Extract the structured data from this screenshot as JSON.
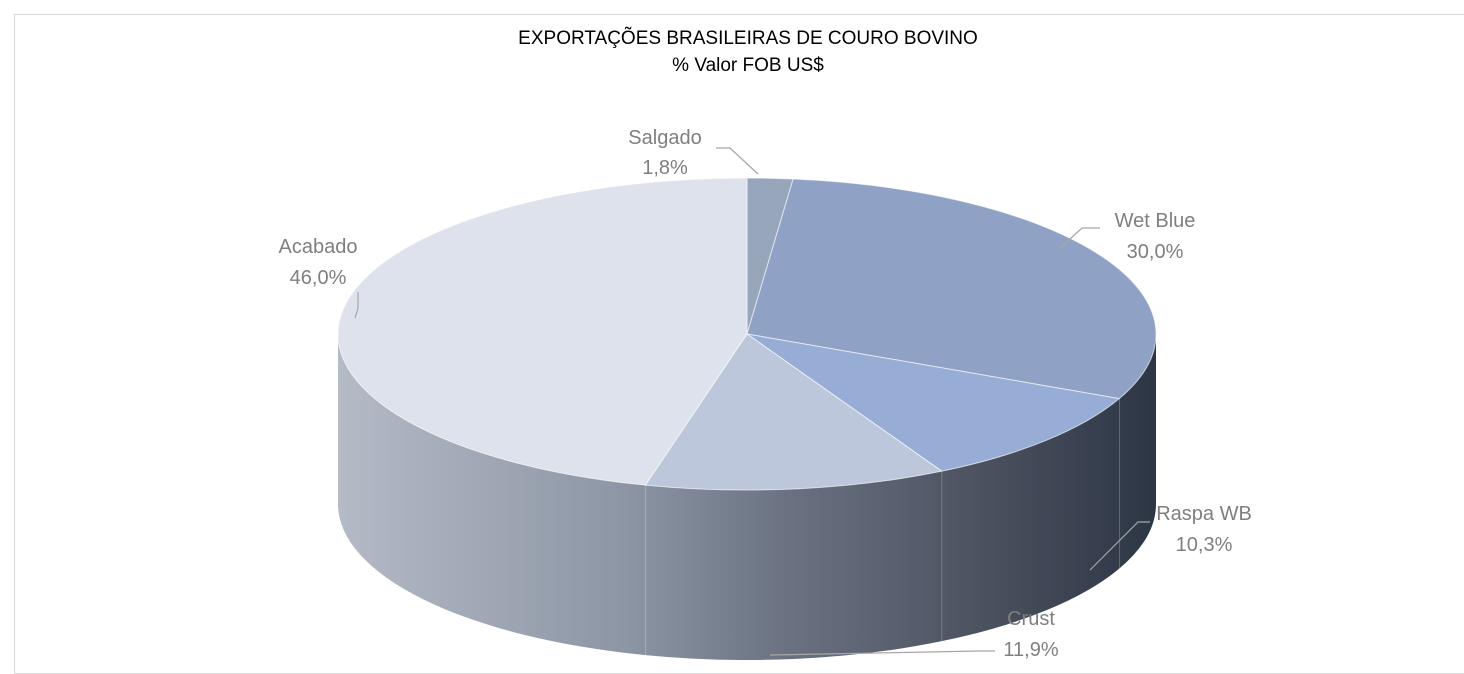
{
  "chart_data": {
    "type": "pie",
    "title": "EXPORTAÇÕES BRASILEIRAS DE COURO BOVINO",
    "subtitle": "% Valor FOB US$",
    "unit": "%",
    "slices": [
      {
        "name": "Salgado",
        "value": 1.8,
        "label": "1,8%",
        "color": "#98a6bc"
      },
      {
        "name": "Wet Blue",
        "value": 30.0,
        "label": "30,0%",
        "color": "#8fa2c5"
      },
      {
        "name": "Raspa WB",
        "value": 10.3,
        "label": "10,3%",
        "color": "#98add5"
      },
      {
        "name": "Crust",
        "value": 11.9,
        "label": "11,9%",
        "color": "#bcc7dc"
      },
      {
        "name": "Acabado",
        "value": 46.0,
        "label": "46,0%",
        "color": "#dde2ec"
      }
    ],
    "legend": "none",
    "style": "3d-pie"
  }
}
